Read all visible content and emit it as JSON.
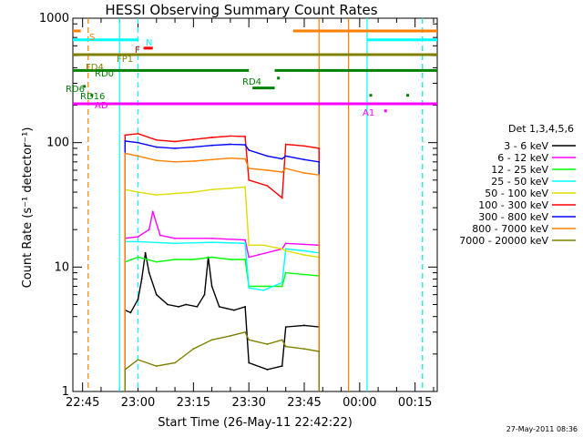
{
  "chart_data": {
    "type": "line",
    "title": "HESSI Observing Summary Count Rates",
    "xlabel": "Start Time (26-May-11 22:42:22)",
    "ylabel": "Count Rate (s⁻¹ detector⁻¹)",
    "yscale": "log",
    "ylim": [
      1,
      1000
    ],
    "xlim": [
      "22:42:22",
      "00:21:00"
    ],
    "x_ticks": [
      "22:45",
      "23:00",
      "23:15",
      "23:30",
      "23:45",
      "00:00",
      "00:15"
    ],
    "y_ticks": [
      "1",
      "10",
      "100",
      "1000"
    ],
    "grid": false,
    "legend_title": "Det 1,3,4,5,6",
    "legend_position": "right",
    "timestamp": "27-May-2011 08:36",
    "series": [
      {
        "name": "3 - 6 keV",
        "color": "#000000",
        "x": [
          "22:56:30",
          "22:58:00",
          "23:00:00",
          "23:01:00",
          "23:02:00",
          "23:03:00",
          "23:05:00",
          "23:08:00",
          "23:11:00",
          "23:13:00",
          "23:16:00",
          "23:18:00",
          "23:19:00",
          "23:20:00",
          "23:22:00",
          "23:26:00",
          "23:29:00",
          "23:30:00",
          "23:35:00",
          "23:39:00",
          "23:40:00",
          "23:45:00",
          "23:49:00"
        ],
        "y": [
          4.5,
          4.3,
          5.5,
          8,
          13,
          9,
          6,
          5,
          4.8,
          5,
          4.8,
          6,
          12,
          7,
          4.8,
          4.5,
          4.8,
          1.7,
          1.5,
          1.6,
          3.3,
          3.4,
          3.3
        ]
      },
      {
        "name": "6 - 12 keV",
        "color": "#ff00ff",
        "x": [
          "22:56:30",
          "23:00:00",
          "23:03:00",
          "23:04:00",
          "23:06:00",
          "23:10:00",
          "23:20:00",
          "23:29:00",
          "23:30:00",
          "23:39:00",
          "23:40:00",
          "23:49:00"
        ],
        "y": [
          17,
          17.5,
          20,
          28,
          18,
          17,
          17,
          16.5,
          12,
          14,
          15.5,
          15
        ]
      },
      {
        "name": "12 - 25 keV",
        "color": "#00ff00",
        "x": [
          "22:56:30",
          "23:00:00",
          "23:05:00",
          "23:10:00",
          "23:15:00",
          "23:20:00",
          "23:25:00",
          "23:29:00",
          "23:30:00",
          "23:39:00",
          "23:40:00",
          "23:49:00"
        ],
        "y": [
          11,
          12,
          11,
          11.5,
          11.5,
          12,
          11.5,
          11.5,
          7,
          7,
          9,
          8.5
        ]
      },
      {
        "name": "25 - 50 keV",
        "color": "#00ffff",
        "x": [
          "22:56:30",
          "23:00:00",
          "23:10:00",
          "23:20:00",
          "23:29:00",
          "23:30:00",
          "23:34:00",
          "23:39:00",
          "23:40:00",
          "23:45:00",
          "23:49:00"
        ],
        "y": [
          16,
          16,
          15.5,
          15.8,
          15.5,
          6.8,
          6.5,
          7.5,
          14,
          13.5,
          13
        ]
      },
      {
        "name": "50 - 100 keV",
        "color": "#dddd00",
        "x": [
          "22:56:30",
          "23:00:00",
          "23:05:00",
          "23:10:00",
          "23:15:00",
          "23:20:00",
          "23:25:00",
          "23:29:00",
          "23:30:00",
          "23:34:00",
          "23:39:00",
          "23:40:00",
          "23:45:00",
          "23:49:00"
        ],
        "y": [
          42,
          40,
          38,
          39,
          40,
          42,
          43,
          44,
          15,
          15,
          14,
          13.5,
          12.5,
          12
        ]
      },
      {
        "name": "100 - 300 keV",
        "color": "#ff0000",
        "x": [
          "22:56:30",
          "23:00:00",
          "23:05:00",
          "23:10:00",
          "23:15:00",
          "23:20:00",
          "23:25:00",
          "23:29:00",
          "23:30:00",
          "23:35:00",
          "23:39:00",
          "23:40:00",
          "23:45:00",
          "23:49:00"
        ],
        "y": [
          115,
          118,
          105,
          102,
          106,
          110,
          113,
          112,
          50,
          45,
          36,
          97,
          94,
          90
        ]
      },
      {
        "name": "300 - 800 keV",
        "color": "#0000ff",
        "x": [
          "22:56:30",
          "23:00:00",
          "23:05:00",
          "23:10:00",
          "23:15:00",
          "23:20:00",
          "23:25:00",
          "23:29:00",
          "23:30:00",
          "23:35:00",
          "23:39:00",
          "23:40:00",
          "23:45:00",
          "23:49:00"
        ],
        "y": [
          103,
          100,
          92,
          90,
          92,
          95,
          97,
          96,
          87,
          78,
          74,
          78,
          73,
          70
        ]
      },
      {
        "name": "800 - 7000 keV",
        "color": "#ff8000",
        "x": [
          "22:56:30",
          "23:00:00",
          "23:05:00",
          "23:10:00",
          "23:15:00",
          "23:20:00",
          "23:25:00",
          "23:29:00",
          "23:30:00",
          "23:35:00",
          "23:39:00",
          "23:40:00",
          "23:45:00",
          "23:49:00"
        ],
        "y": [
          82,
          78,
          72,
          70,
          71,
          73,
          75,
          74,
          62,
          60,
          58,
          62,
          57,
          55
        ]
      },
      {
        "name": "7000 - 20000 keV",
        "color": "#808000",
        "x": [
          "22:56:30",
          "23:00:00",
          "23:05:00",
          "23:10:00",
          "23:15:00",
          "23:20:00",
          "23:25:00",
          "23:29:00",
          "23:30:00",
          "23:35:00",
          "23:39:00",
          "23:40:00",
          "23:45:00",
          "23:49:00"
        ],
        "y": [
          1.5,
          1.8,
          1.6,
          1.7,
          2.2,
          2.6,
          2.8,
          3.0,
          2.6,
          2.4,
          2.6,
          2.3,
          2.2,
          2.1
        ]
      }
    ],
    "flag_bars": [
      {
        "label": "S",
        "color": "#ff8000",
        "y": 790,
        "segments": [
          [
            "22:42:22",
            "22:44:30"
          ],
          [
            "23:42:00",
            "00:21:00"
          ]
        ]
      },
      {
        "label": "N",
        "color": "#00ffff",
        "y": 670,
        "segments": [
          [
            "22:42:22",
            "23:00:00"
          ],
          [
            "00:02:00",
            "00:21:00"
          ]
        ]
      },
      {
        "label": "F",
        "color": "#ff0000",
        "y": 575,
        "segments": [
          [
            "23:01:30",
            "23:04:00"
          ]
        ]
      },
      {
        "label": "FP1",
        "color": "#808000",
        "y": 510,
        "segments": [
          [
            "22:42:22",
            "00:21:00"
          ]
        ]
      },
      {
        "label": "FD4",
        "color": "#808000",
        "y": 430,
        "segments": []
      },
      {
        "label": "RD0",
        "color": "#008000",
        "y": 380,
        "segments": [
          [
            "22:42:22",
            "23:30:00"
          ],
          [
            "23:37:00",
            "00:21:00"
          ]
        ]
      },
      {
        "label": "RD4",
        "color": "#008000",
        "y": 275,
        "segments": [
          [
            "23:31:00",
            "23:37:00"
          ]
        ]
      },
      {
        "label": "RD6",
        "color": "#008000",
        "y": 283,
        "segments": []
      },
      {
        "label": "RD16",
        "color": "#008000",
        "y": 240,
        "segments": []
      },
      {
        "label": "AD",
        "color": "#ff00ff",
        "y": 205,
        "segments": [
          [
            "22:42:22",
            "00:21:00"
          ]
        ]
      },
      {
        "label": "A1",
        "color": "#ff00ff",
        "y": 185,
        "segments": []
      }
    ],
    "vertical_markers": [
      {
        "time": "22:46:30",
        "color": "#ff8000",
        "style": "dashed"
      },
      {
        "time": "22:55:00",
        "color": "#00ffff",
        "style": "solid"
      },
      {
        "time": "23:00:00",
        "color": "#00ffff",
        "style": "dashed"
      },
      {
        "time": "23:49:00",
        "color": "#ff8000",
        "style": "solid"
      },
      {
        "time": "23:57:00",
        "color": "#ff8000",
        "style": "solid"
      },
      {
        "time": "00:02:00",
        "color": "#00ffff",
        "style": "solid"
      },
      {
        "time": "00:17:00",
        "color": "#ff8000",
        "style": "dashed"
      },
      {
        "time": "00:17:00",
        "color": "#00ffff",
        "style": "dashed"
      }
    ]
  }
}
